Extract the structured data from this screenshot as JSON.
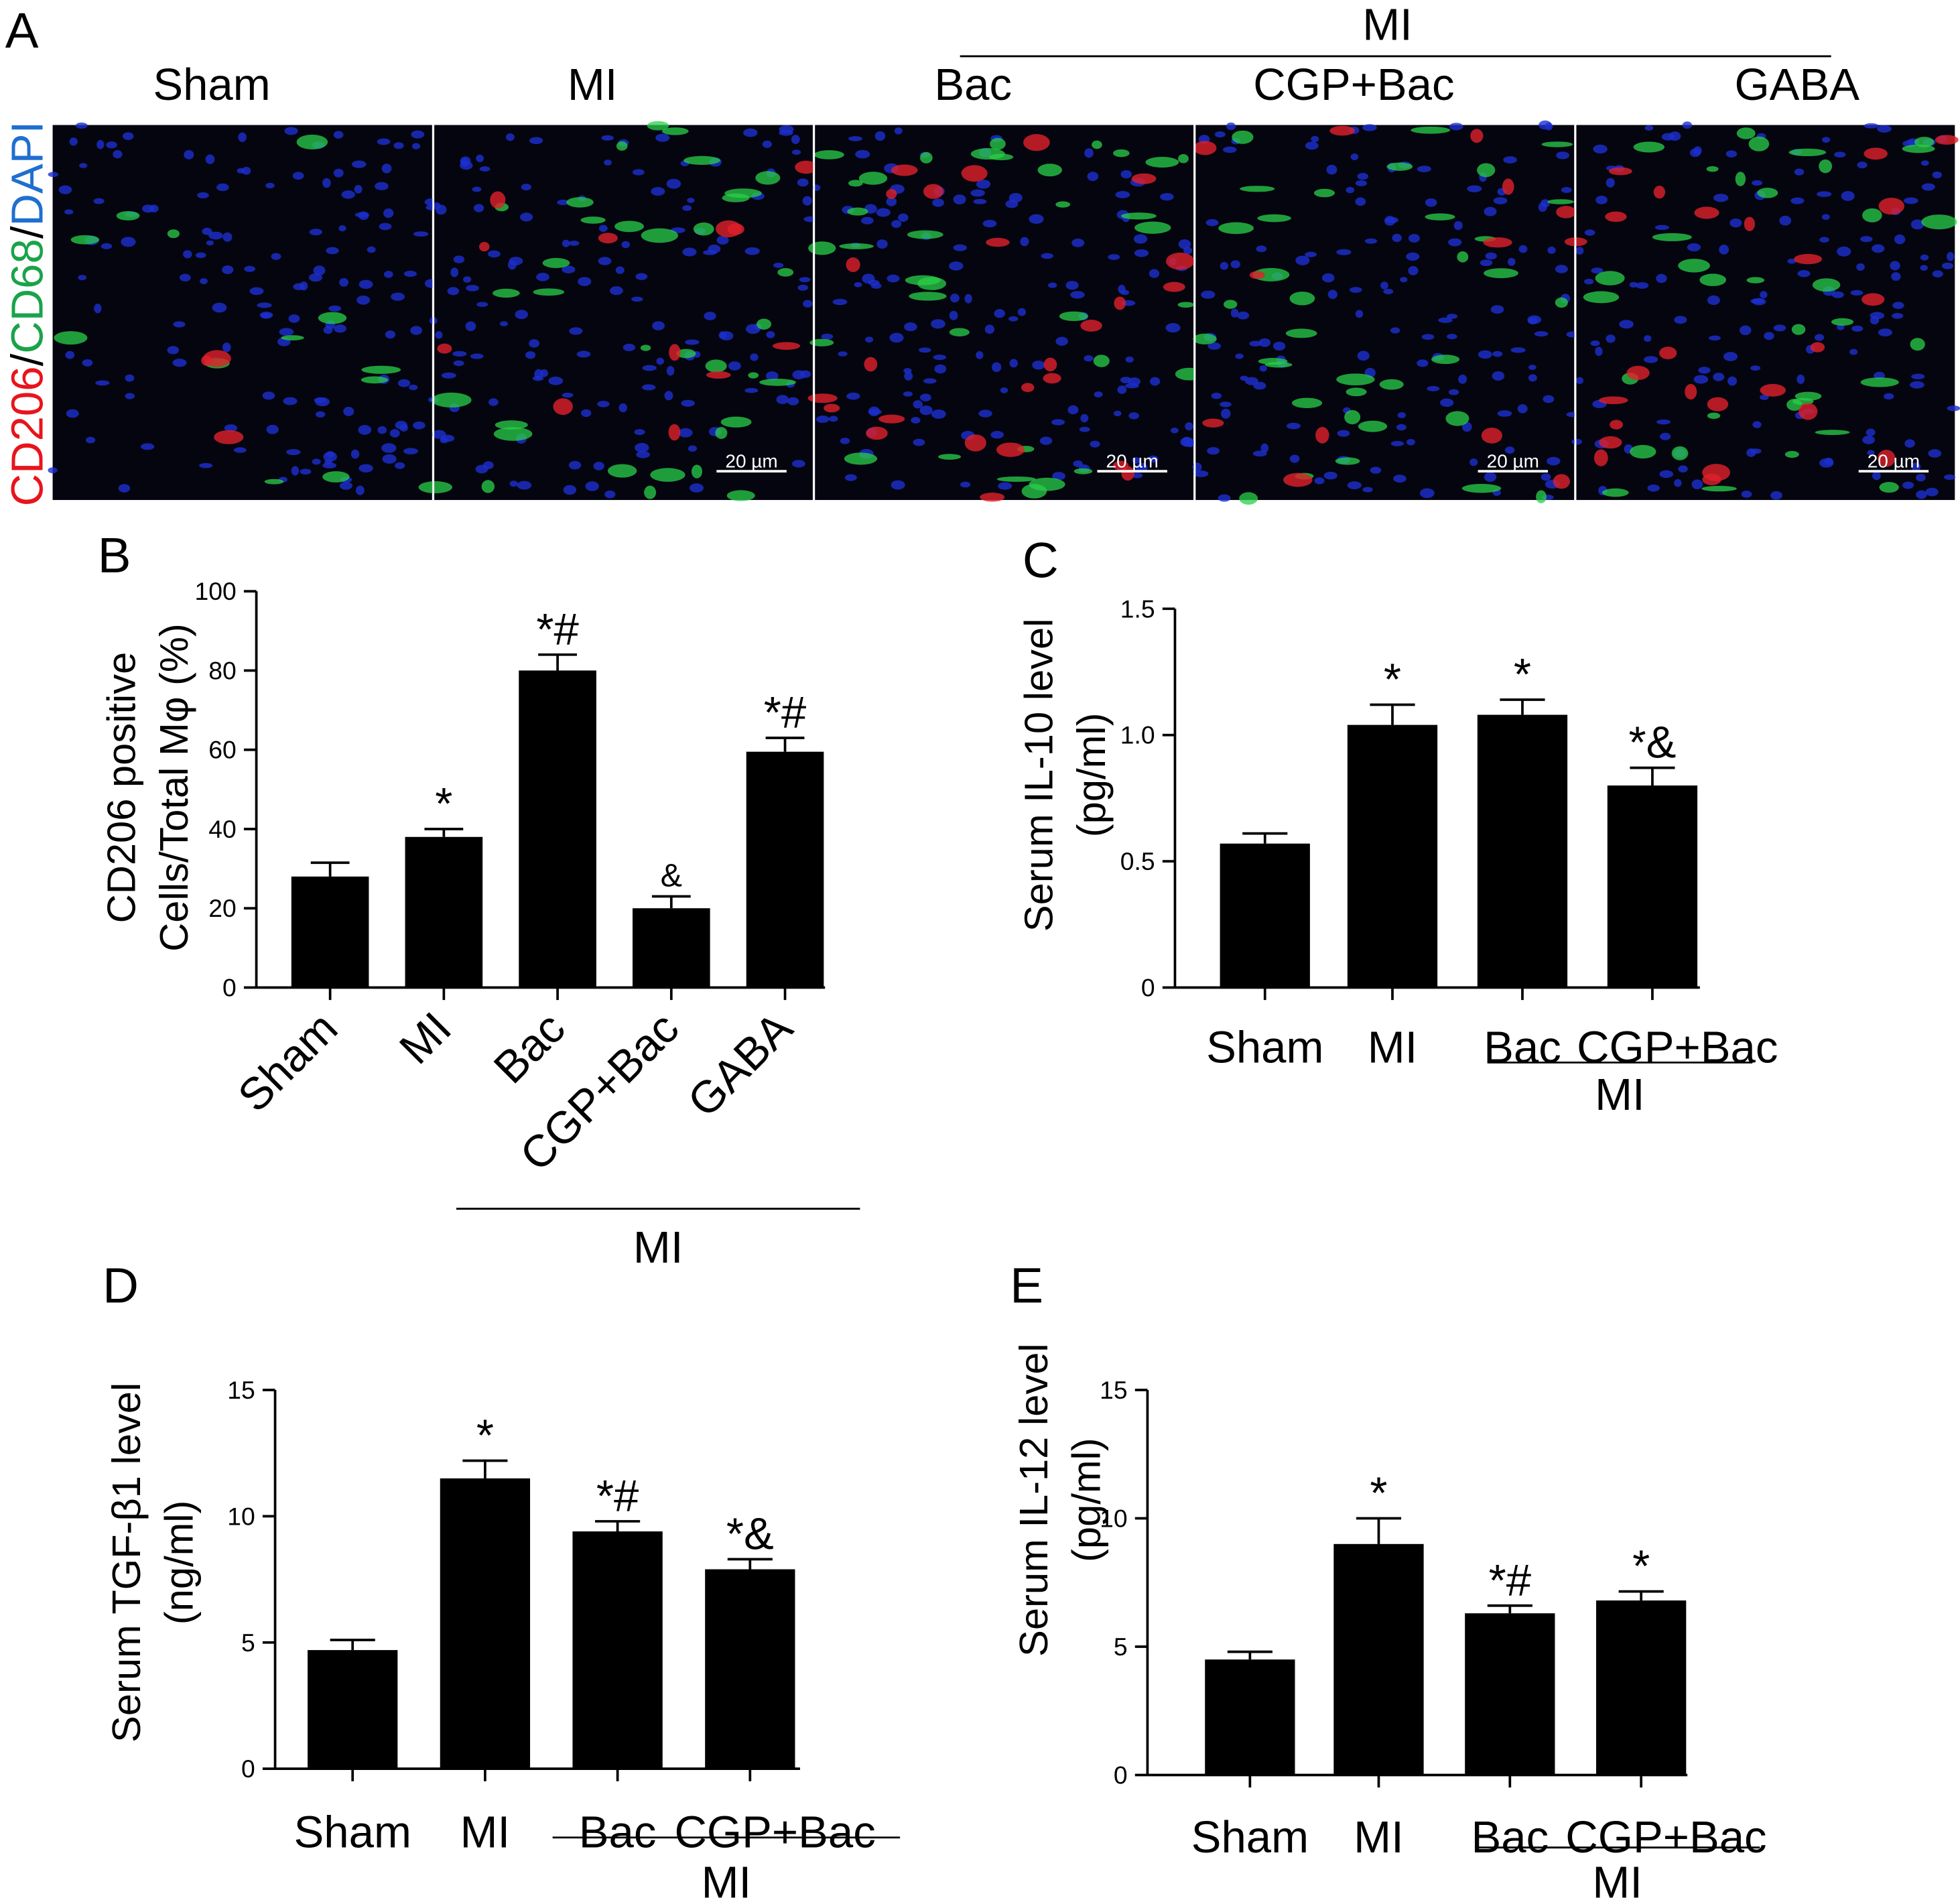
{
  "panel_a": {
    "panel_label": "A",
    "stain_label": [
      "CD206",
      "/",
      "CD68",
      "/",
      "DAPI"
    ],
    "stain_colors": [
      "#e8141c",
      "#000000",
      "#1aa34a",
      "#000000",
      "#1f6fd0"
    ],
    "headers": [
      "Sham",
      "MI",
      "Bac",
      "CGP+Bac",
      "GABA"
    ],
    "group_label": "MI",
    "scale_bar": "20 µm"
  },
  "chart_data": [
    {
      "type": "bar",
      "panel_label": "B",
      "y_label": [
        "CD206 positive",
        "Cells/Total Mφ (%)"
      ],
      "categories": [
        "Sham",
        "MI",
        "Bac",
        "CGP+Bac",
        "GABA"
      ],
      "values": [
        28,
        38,
        80,
        20,
        59.5
      ],
      "errors": [
        3.5,
        2,
        4,
        3,
        3.5
      ],
      "annotations": [
        null,
        "*",
        "*#",
        "&",
        "*#"
      ],
      "group_label": "MI",
      "color": "#000000",
      "ylim": [
        0,
        100
      ],
      "yticks": [
        0,
        20,
        40,
        60,
        80,
        100
      ],
      "rotate_labels": 45
    },
    {
      "type": "bar",
      "panel_label": "C",
      "y_label": [
        "Serum IL-10 level",
        "(pg/ml)"
      ],
      "categories": [
        "Sham",
        "MI",
        "Bac",
        "CGP+Bac"
      ],
      "values": [
        0.57,
        1.04,
        1.08,
        0.8
      ],
      "errors": [
        0.04,
        0.08,
        0.06,
        0.07
      ],
      "annotations": [
        null,
        "*",
        "*",
        "*&"
      ],
      "group_label": "MI",
      "color": "#000000",
      "ylim": [
        0,
        1.5
      ],
      "yticks": [
        0,
        0.5,
        {
          "value": 1,
          "label": "1.0"
        },
        1.5
      ]
    },
    {
      "type": "bar",
      "panel_label": "D",
      "y_label": [
        "Serum TGF-β1 level",
        "(ng/ml)"
      ],
      "categories": [
        "Sham",
        "MI",
        "Bac",
        "CGP+Bac"
      ],
      "values": [
        4.7,
        11.5,
        9.4,
        7.9
      ],
      "errors": [
        0.4,
        0.7,
        0.4,
        0.4
      ],
      "annotations": [
        null,
        "*",
        "*#",
        "*&"
      ],
      "group_label": "MI",
      "color": "#000000",
      "ylim": [
        0,
        15
      ],
      "yticks": [
        0,
        5,
        10,
        15
      ]
    },
    {
      "type": "bar",
      "panel_label": "E",
      "y_label": [
        "Serum IL-12 level",
        "(pg/ml)"
      ],
      "categories": [
        "Sham",
        "MI",
        "Bac",
        "CGP+Bac"
      ],
      "values": [
        4.5,
        9.0,
        6.3,
        6.8
      ],
      "errors": [
        0.3,
        1.0,
        0.3,
        0.35
      ],
      "annotations": [
        null,
        "*",
        "*#",
        "*"
      ],
      "group_label": "MI",
      "color": "#000000",
      "ylim": [
        0,
        15
      ],
      "yticks": [
        0,
        5,
        10,
        15
      ]
    }
  ]
}
